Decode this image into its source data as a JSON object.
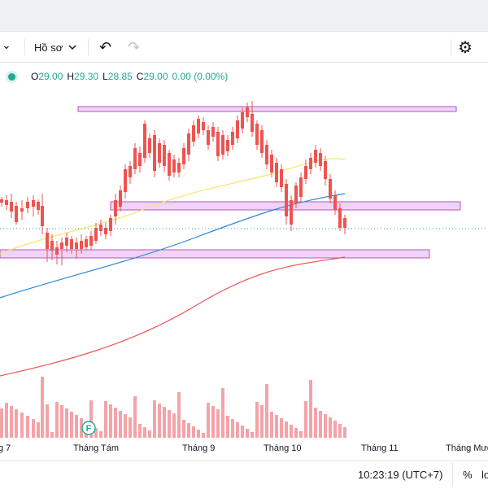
{
  "toolbar": {
    "dropdown_left_chevron": "⌄",
    "profile_label": "Hồ sơ",
    "undo_icon": "↶",
    "redo_icon": "↷",
    "settings_icon": "⚙"
  },
  "legend": {
    "open_label": "O",
    "open": "29.00",
    "high_label": "H",
    "high": "29.30",
    "low_label": "L",
    "low": "28.85",
    "close_label": "C",
    "close": "29.00",
    "change": "0.00 (0.00%)",
    "status_color": "#22ab94",
    "up_color": "#22ab94"
  },
  "time_axis": {
    "labels": [
      "g 7",
      "Tháng Tám",
      "Tháng 9",
      "Tháng 10",
      "Tháng 11",
      "Tháng Mười"
    ]
  },
  "event_marker": {
    "letter": "F",
    "color": "#22ab94"
  },
  "statusbar": {
    "time": "10:23:19 (UTC+7)",
    "percent": "%",
    "log": "lo"
  },
  "colors": {
    "up": "#26a69a",
    "down": "#ef5350",
    "up_volume": "#8fd1c4",
    "down_volume": "#f4a3a8",
    "ma_yellow": "#f5e663",
    "ma_blue": "#2e86de",
    "ma_red": "#ef5350",
    "zone_fill": "#f1d3f5",
    "zone_border": "#b157c7"
  },
  "chart_data": {
    "type": "candlestick",
    "volume_shown": true,
    "moving_averages": [
      "yellow",
      "blue",
      "red"
    ],
    "price_zones": 3
  }
}
